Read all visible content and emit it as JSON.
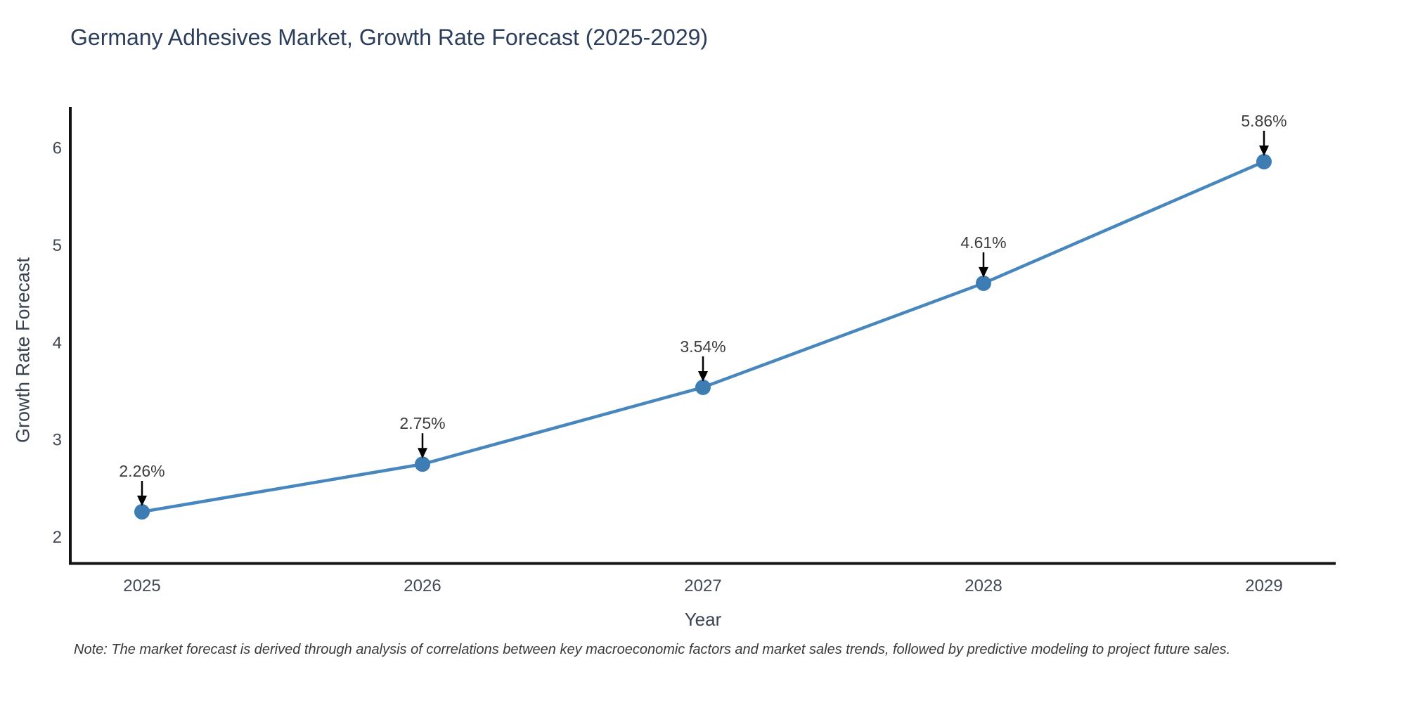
{
  "note": "Note: The market forecast is derived through analysis of correlations between key macroeconomic factors and market sales trends, followed by predictive modeling to project future sales.",
  "chart_data": {
    "type": "line",
    "title": "Germany Adhesives Market, Growth Rate Forecast (2025-2029)",
    "xlabel": "Year",
    "ylabel": "Growth Rate Forecast",
    "x": [
      2025,
      2026,
      2027,
      2028,
      2029
    ],
    "x_tick_labels": [
      "2025",
      "2026",
      "2027",
      "2028",
      "2029"
    ],
    "series": [
      {
        "name": "Growth Rate Forecast",
        "values": [
          2.26,
          2.75,
          3.54,
          4.61,
          5.86
        ],
        "point_labels": [
          "2.26%",
          "2.75%",
          "3.54%",
          "4.61%",
          "5.86%"
        ]
      }
    ],
    "yticks": [
      2,
      3,
      4,
      5,
      6
    ],
    "ylim": [
      1.73,
      6.42
    ],
    "grid": false,
    "legend": "none",
    "annotation_style": "value label above point with downward black arrow",
    "colors": {
      "line": "#4787bd",
      "marker": "#3e7db3",
      "axis": "#131313",
      "tick_label": "#424a57",
      "annotation_text": "#3d3d3d",
      "arrow": "#000000"
    }
  }
}
